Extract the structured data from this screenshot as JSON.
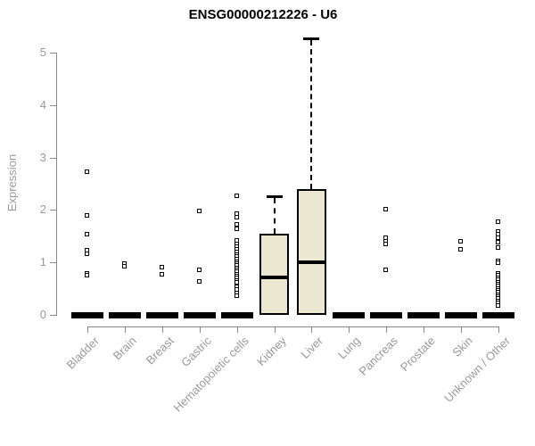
{
  "chart_data": {
    "type": "boxplot",
    "title": "ENSG00000212226 - U6",
    "ylabel": "Expression",
    "xlabel": "",
    "ylim": [
      0,
      5.3
    ],
    "yticks": [
      0,
      1,
      2,
      3,
      4,
      5
    ],
    "grid": false,
    "legend": "none",
    "colors": {
      "box_fill": "#ece7d0",
      "box_border": "#000000",
      "median": "#000000",
      "axis_line": "#888888",
      "axis_text": "#999999",
      "title_text": "#000000",
      "background": "#ffffff"
    },
    "categories": [
      "Bladder",
      "Brain",
      "Breast",
      "Gastric",
      "Hematopoietic cells",
      "Kidney",
      "Liver",
      "Lung",
      "Pancreas",
      "Prostate",
      "Skin",
      "Unknown / Other"
    ],
    "boxes": [
      {
        "category": "Bladder",
        "whisker_low": 0,
        "q1": 0,
        "median": 0,
        "q3": 0,
        "whisker_high": 0,
        "outliers": [
          2.72,
          1.89,
          1.53,
          1.22,
          1.15,
          0.79,
          0.74
        ]
      },
      {
        "category": "Brain",
        "whisker_low": 0,
        "q1": 0,
        "median": 0,
        "q3": 0,
        "whisker_high": 0,
        "outliers": [
          0.97,
          0.92
        ]
      },
      {
        "category": "Breast",
        "whisker_low": 0,
        "q1": 0,
        "median": 0,
        "q3": 0,
        "whisker_high": 0,
        "outliers": [
          0.9,
          0.77
        ]
      },
      {
        "category": "Gastric",
        "whisker_low": 0,
        "q1": 0,
        "median": 0,
        "q3": 0,
        "whisker_high": 0,
        "outliers": [
          1.98,
          0.85,
          0.63
        ]
      },
      {
        "category": "Hematopoietic cells",
        "whisker_low": 0,
        "q1": 0,
        "median": 0,
        "q3": 0,
        "whisker_high": 0,
        "outliers": [
          2.26,
          1.92,
          1.85,
          1.71,
          1.64,
          1.41,
          1.34,
          1.29,
          1.24,
          1.19,
          1.14,
          1.1,
          1.05,
          1.01,
          0.97,
          0.93,
          0.89,
          0.85,
          0.81,
          0.77,
          0.73,
          0.69,
          0.65,
          0.61,
          0.52,
          0.47,
          0.4,
          0.36
        ]
      },
      {
        "category": "Kidney",
        "whisker_low": 0,
        "q1": 0,
        "median": 0.72,
        "q3": 1.54,
        "whisker_high": 2.26,
        "outliers": []
      },
      {
        "category": "Liver",
        "whisker_low": 0,
        "q1": 0,
        "median": 1.0,
        "q3": 2.4,
        "whisker_high": 5.27,
        "outliers": []
      },
      {
        "category": "Lung",
        "whisker_low": 0,
        "q1": 0,
        "median": 0,
        "q3": 0,
        "whisker_high": 0,
        "outliers": []
      },
      {
        "category": "Pancreas",
        "whisker_low": 0,
        "q1": 0,
        "median": 0,
        "q3": 0,
        "whisker_high": 0,
        "outliers": [
          2.01,
          1.46,
          1.4,
          1.35,
          0.85
        ]
      },
      {
        "category": "Prostate",
        "whisker_low": 0,
        "q1": 0,
        "median": 0,
        "q3": 0,
        "whisker_high": 0,
        "outliers": []
      },
      {
        "category": "Skin",
        "whisker_low": 0,
        "q1": 0,
        "median": 0,
        "q3": 0,
        "whisker_high": 0,
        "outliers": [
          1.39,
          1.24
        ]
      },
      {
        "category": "Unknown / Other",
        "whisker_low": 0,
        "q1": 0,
        "median": 0,
        "q3": 0,
        "whisker_high": 0,
        "outliers": [
          1.77,
          1.58,
          1.53,
          1.47,
          1.38,
          1.28,
          1.02,
          0.99,
          0.78,
          0.74,
          0.7,
          0.66,
          0.62,
          0.58,
          0.54,
          0.5,
          0.46,
          0.42,
          0.38,
          0.34,
          0.3,
          0.26,
          0.22,
          0.17
        ]
      }
    ]
  }
}
